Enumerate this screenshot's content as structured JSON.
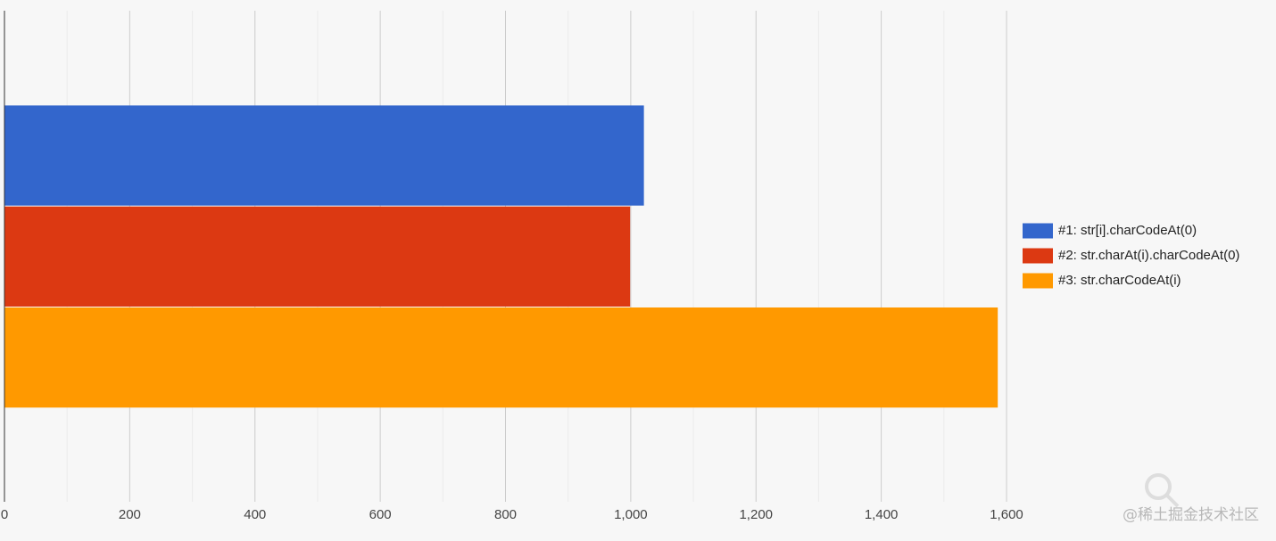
{
  "chart_data": {
    "type": "bar",
    "orientation": "horizontal",
    "categories": [
      null
    ],
    "series": [
      {
        "name": "#1: str[i].charCodeAt(0)",
        "color": "#3366cc",
        "values": [
          1021
        ]
      },
      {
        "name": "#2: str.charAt(i).charCodeAt(0)",
        "color": "#dc3912",
        "values": [
          999
        ]
      },
      {
        "name": "#3: str.charCodeAt(i)",
        "color": "#ff9900",
        "values": [
          1586
        ]
      }
    ],
    "xlim": [
      0,
      1600
    ],
    "xticks": [
      0,
      200,
      400,
      600,
      800,
      {
        "value": 1000,
        "label": "1,000"
      },
      {
        "value": 1200,
        "label": "1,200"
      },
      {
        "value": 1400,
        "label": "1,400"
      },
      {
        "value": 1600,
        "label": "1,600"
      }
    ],
    "xminorticks": [
      100,
      300,
      500,
      700,
      900,
      1100,
      1300,
      1500
    ],
    "grid": true,
    "legend": "right",
    "watermark": "@稀土掘金技术社区"
  }
}
